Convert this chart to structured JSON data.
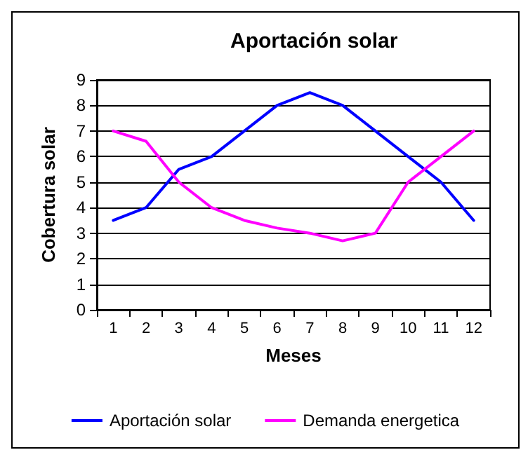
{
  "chart_data": {
    "type": "line",
    "title": "Aportación solar",
    "xlabel": "Meses",
    "ylabel": "Cobertura solar",
    "categories": [
      "1",
      "2",
      "3",
      "4",
      "5",
      "6",
      "7",
      "8",
      "9",
      "10",
      "11",
      "12"
    ],
    "series": [
      {
        "name": "Aportación solar",
        "color": "#0000ff",
        "values": [
          3.5,
          4,
          5.5,
          6,
          7,
          8,
          8.5,
          8,
          7,
          6,
          5,
          3.5
        ]
      },
      {
        "name": "Demanda energetica",
        "color": "#ff00ff",
        "values": [
          7,
          6.6,
          5,
          4,
          3.5,
          3.2,
          3,
          2.7,
          3,
          5,
          6,
          7
        ]
      }
    ],
    "ylim": [
      0,
      9
    ],
    "yticks": [
      0,
      1,
      2,
      3,
      4,
      5,
      6,
      7,
      8,
      9
    ],
    "grid": "y",
    "legend": "bottom",
    "marker": "none",
    "line_style": "solid"
  }
}
